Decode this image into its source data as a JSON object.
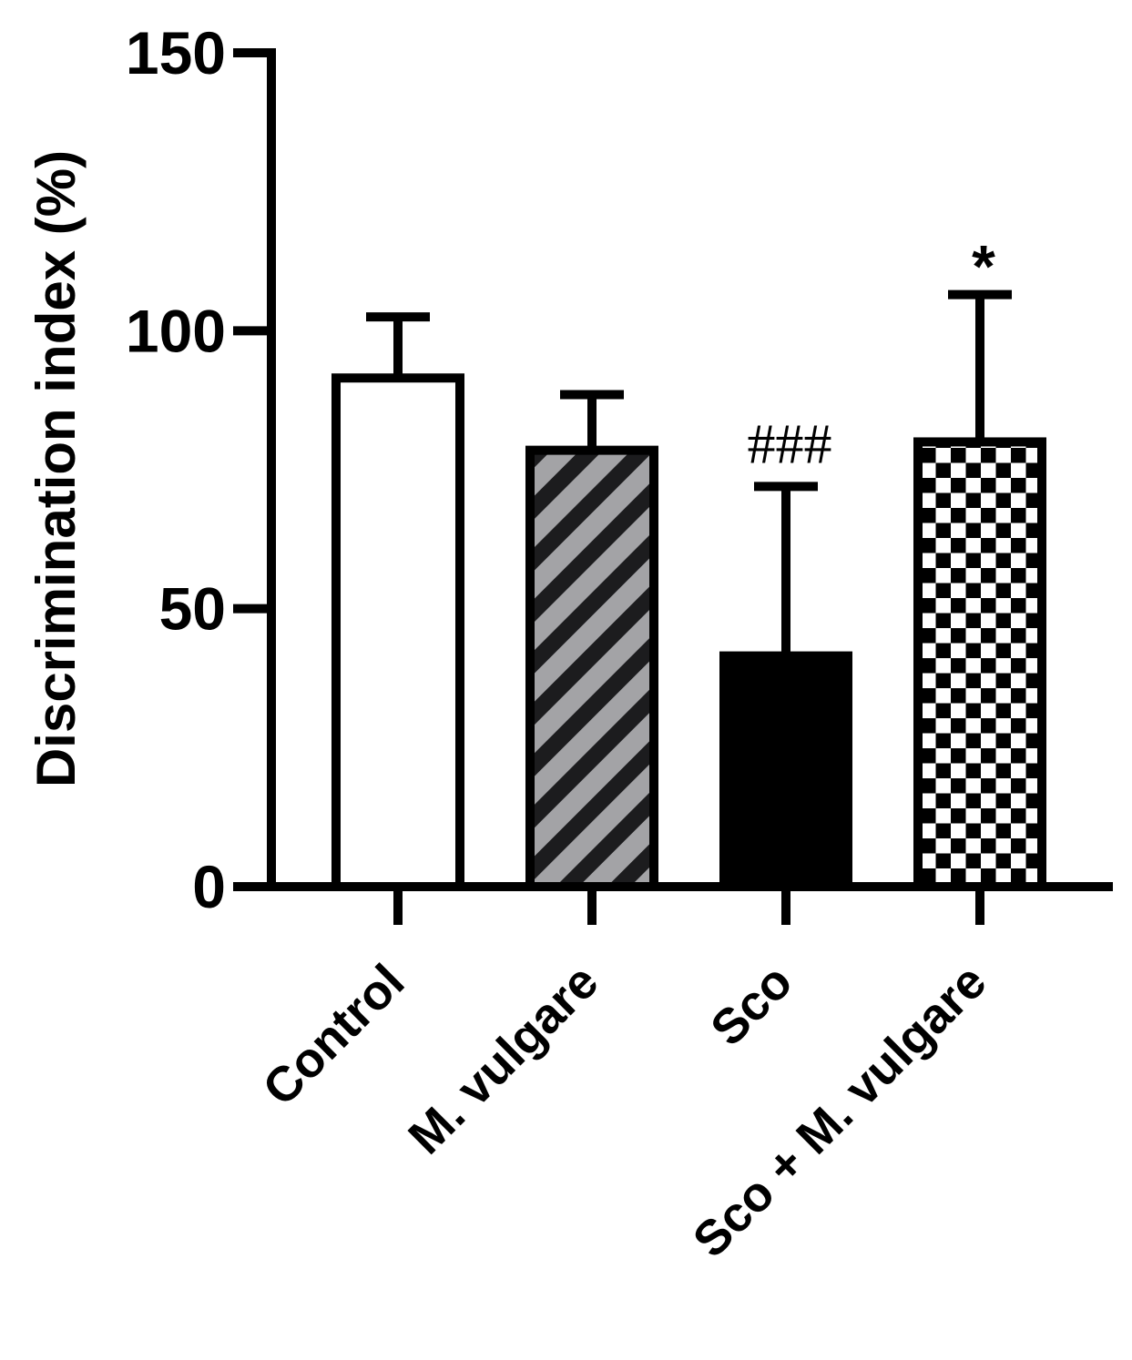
{
  "chart_data": {
    "type": "bar",
    "title": "",
    "xlabel": "",
    "ylabel": "Discrimination index (%)",
    "ylim": [
      0,
      150
    ],
    "yticks": [
      {
        "value": 0,
        "label": "0"
      },
      {
        "value": 50,
        "label": "50"
      },
      {
        "value": 100,
        "label": "100"
      },
      {
        "value": 150,
        "label": "150"
      }
    ],
    "grid": false,
    "categories": [
      "Control",
      "M. vulgare",
      "Sco",
      "Sco + M. vulgare"
    ],
    "values": [
      91.5,
      78.5,
      41.5,
      80
    ],
    "error_upper": [
      11,
      10,
      30.5,
      26.5
    ],
    "fills": [
      "open",
      "diagonal-stripes",
      "solid",
      "checkerboard"
    ],
    "annotations": [
      {
        "category": "Sco",
        "text": "###"
      },
      {
        "category": "Sco + M. vulgare",
        "text": "*"
      }
    ],
    "colors": {
      "stripe_gray": "#a3a3a6",
      "stripe_dark": "#1c1c1e",
      "solid": "#000000",
      "open": "#ffffff"
    }
  }
}
